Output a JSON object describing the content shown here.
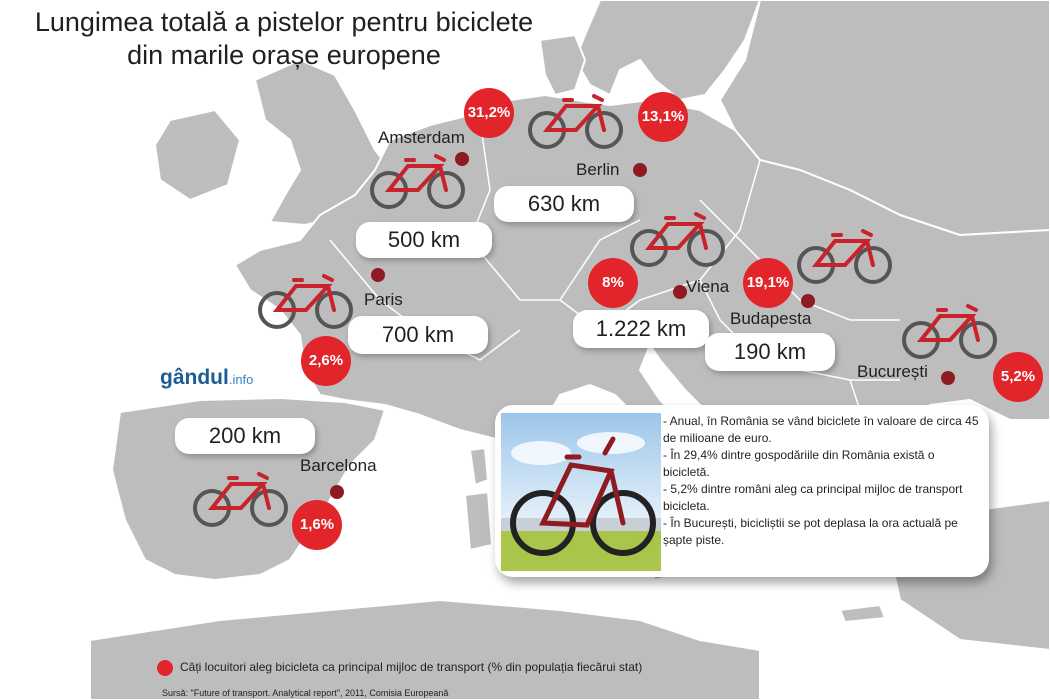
{
  "title": {
    "line1": "Lungimea totală a pistelor pentru biciclete",
    "line2": "din marile orașe europene"
  },
  "cities": [
    {
      "name": "Amsterdam",
      "km": "500 km",
      "share": "31,2%"
    },
    {
      "name": "Berlin",
      "km": "630 km",
      "share": "13,1%"
    },
    {
      "name": "Paris",
      "km": "700 km",
      "share": "2,6%"
    },
    {
      "name": "Viena",
      "km": "1.222 km",
      "share": "8%"
    },
    {
      "name": "Budapesta",
      "km": "190 km",
      "share": "19,1%"
    },
    {
      "name": "București",
      "km": "",
      "share": "5,2%"
    },
    {
      "name": "Barcelona",
      "km": "200 km",
      "share": "1,6%"
    }
  ],
  "logo": {
    "main": "gândul",
    "suffix": ".info"
  },
  "facts": [
    "- Anual, în România se vând biciclete în valoare de circa 45 de milioane de euro.",
    "- În 29,4% dintre gospodăriile din România există o bicicletă.",
    "- 5,2% dintre români aleg ca principal mijloc de transport bicicleta.",
    "- În București, bicicliștii se pot deplasa la ora actuală pe șapte piste."
  ],
  "legend": "Câți locuitori aleg bicicleta ca principal mijloc de transport (% din populația fiecărui stat)",
  "source": "Sursă: \"Future of transport. Analytical report\", 2011, Comisia Europeană",
  "colors": {
    "land": "#bdbdbe",
    "sea": "#ffffff",
    "badge": "#e2252b",
    "dot": "#8e1b22",
    "bike": "#c8232a"
  }
}
